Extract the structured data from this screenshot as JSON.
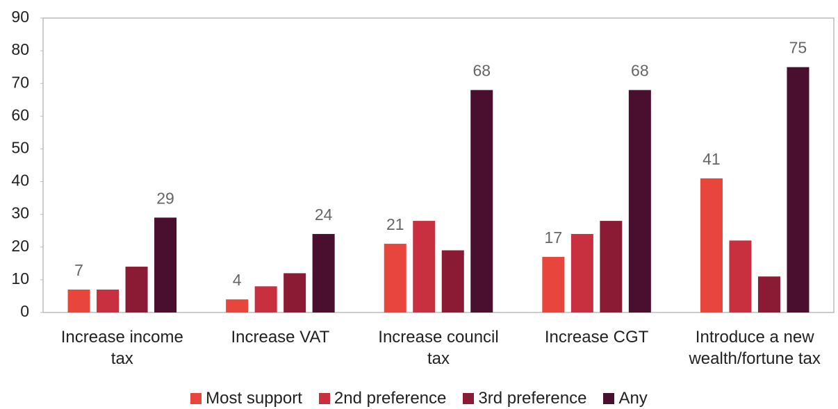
{
  "chart_data": {
    "type": "bar",
    "categories": [
      "Increase income tax",
      "Increase VAT",
      "Increase council tax",
      "Increase CGT",
      "Introduce a new wealth/fortune tax"
    ],
    "series": [
      {
        "name": "Most support",
        "color": "#e8453c",
        "values": [
          7,
          4,
          21,
          17,
          41
        ]
      },
      {
        "name": "2nd preference",
        "color": "#c8303f",
        "values": [
          7,
          8,
          28,
          24,
          22
        ]
      },
      {
        "name": "3rd preference",
        "color": "#8b1a35",
        "values": [
          14,
          12,
          19,
          28,
          11
        ]
      },
      {
        "name": "Any",
        "color": "#4a0f2e",
        "values": [
          29,
          24,
          68,
          68,
          75
        ]
      }
    ],
    "ylim": [
      0,
      90
    ],
    "yticks": [
      0,
      10,
      20,
      30,
      40,
      50,
      60,
      70,
      80,
      90
    ],
    "legend": "bottom"
  }
}
